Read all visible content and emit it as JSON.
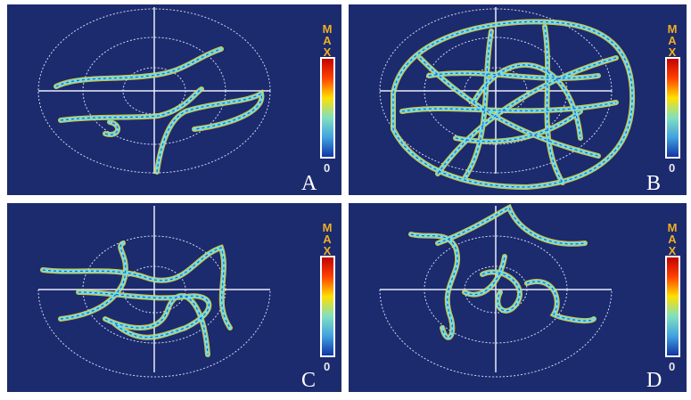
{
  "panels": [
    {
      "label": "A"
    },
    {
      "label": "B"
    },
    {
      "label": "C"
    },
    {
      "label": "D"
    }
  ],
  "colorbar": {
    "max": "MAX",
    "min": "0"
  }
}
